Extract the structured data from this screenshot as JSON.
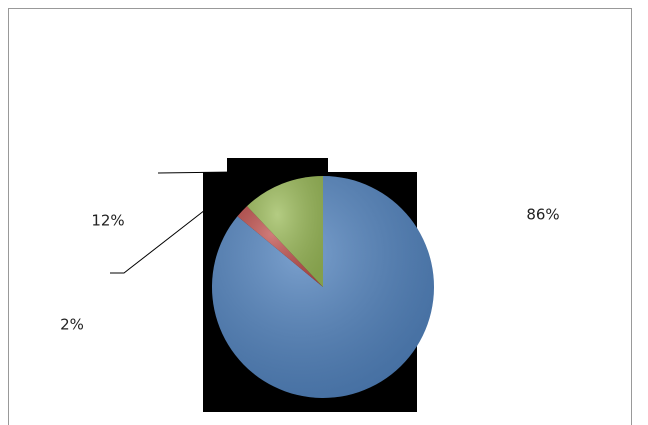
{
  "chart_data": {
    "type": "pie",
    "categories": [
      null,
      null,
      null
    ],
    "values": [
      86,
      2,
      12
    ],
    "value_labels": [
      "86%",
      "2%",
      "12%"
    ],
    "colors": [
      "#4f81bd",
      "#c0504d",
      "#9bbb59"
    ]
  }
}
